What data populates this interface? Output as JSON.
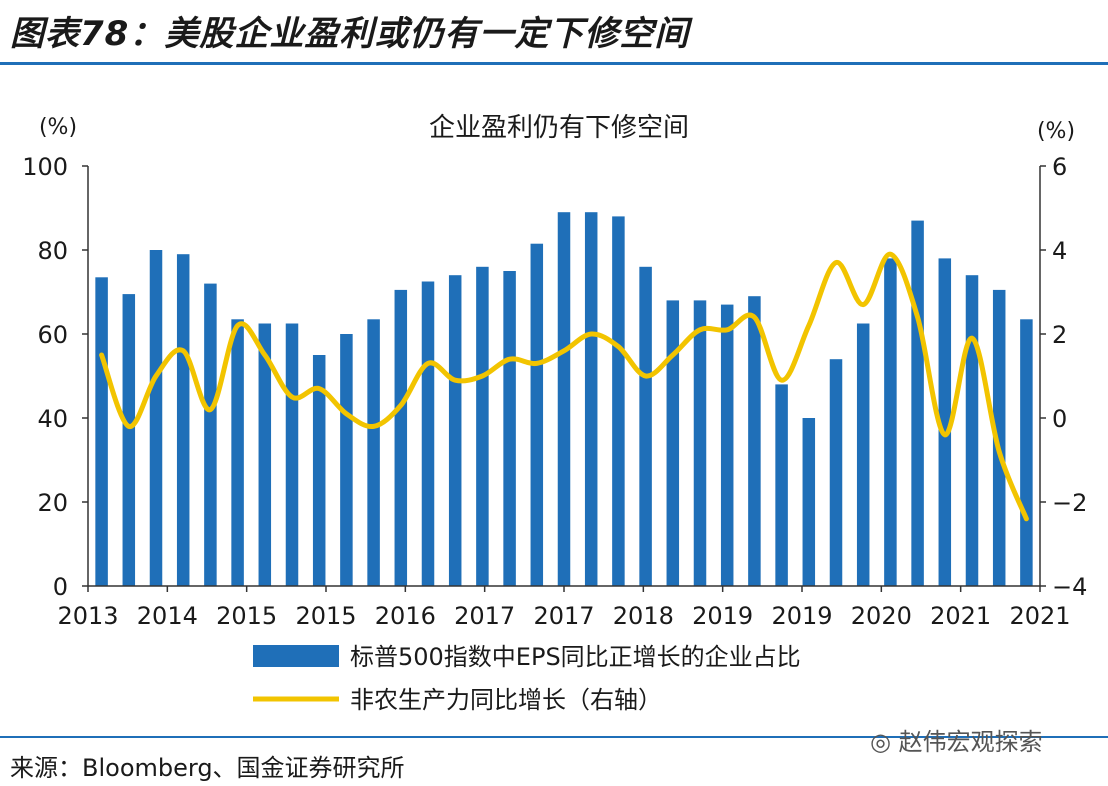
{
  "figure": {
    "title": "图表78：美股企业盈利或仍有一定下修空间",
    "source": "来源：Bloomberg、国金证券研究所",
    "watermark": "赵伟宏观探索",
    "watermark_icon": "wechat-icon"
  },
  "colors": {
    "bar": "#1f6fb8",
    "line": "#f2c400",
    "rule": "#1f6fb8"
  },
  "chart_data": {
    "type": "bar+line",
    "title": "企业盈利仍有下修空间",
    "left_axis_unit": "(%)",
    "right_axis_unit": "(%)",
    "x_tick_labels": [
      "2013",
      "2014",
      "2015",
      "2015",
      "2016",
      "2017",
      "2017",
      "2018",
      "2019",
      "2019",
      "2020",
      "2021",
      "2021"
    ],
    "left_ylim": [
      0,
      100
    ],
    "left_yticks": [
      0,
      20,
      40,
      60,
      80,
      100
    ],
    "right_ylim": [
      -4,
      6
    ],
    "right_yticks": [
      -4,
      -2,
      0,
      2,
      4,
      6
    ],
    "grid": false,
    "legend_position": "bottom",
    "series": [
      {
        "name": "标普500指数中EPS同比正增长的企业占比",
        "kind": "bar",
        "axis": "left",
        "values": [
          73.5,
          69.5,
          80,
          79,
          72,
          63.5,
          62.5,
          62.5,
          55,
          60,
          63.5,
          70.5,
          72.5,
          74,
          76,
          75,
          81.5,
          89,
          89,
          88,
          76,
          68,
          68,
          67,
          69,
          48,
          40,
          54,
          62.5,
          78,
          87,
          78,
          74,
          70.5,
          63.5
        ]
      },
      {
        "name": "非农生产力同比增长（右轴）",
        "kind": "line",
        "axis": "right",
        "values": [
          1.5,
          -0.2,
          1.0,
          1.6,
          0.2,
          2.2,
          1.5,
          0.5,
          0.7,
          0.1,
          -0.2,
          0.3,
          1.3,
          0.9,
          1.0,
          1.4,
          1.3,
          1.6,
          2.0,
          1.7,
          1.0,
          1.5,
          2.1,
          2.1,
          2.4,
          0.9,
          2.2,
          3.7,
          2.7,
          3.9,
          2.4,
          -0.4,
          1.9,
          -0.8,
          -2.4
        ]
      }
    ]
  }
}
